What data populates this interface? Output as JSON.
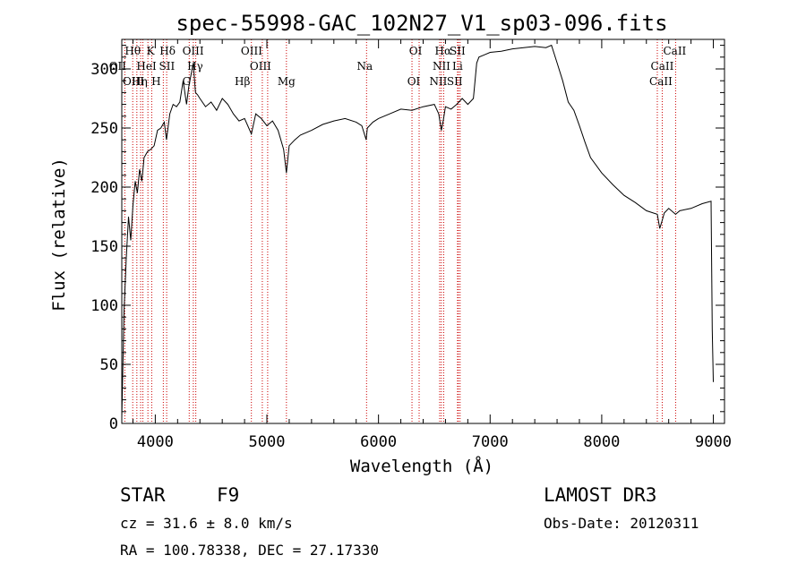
{
  "chart_data": {
    "type": "line",
    "title": "spec-55998-GAC_102N27_V1_sp03-096.fits",
    "xlabel": "Wavelength (Å)",
    "ylabel": "Flux (relative)",
    "xlim": [
      3700,
      9100
    ],
    "ylim": [
      0,
      325
    ],
    "x_ticks": [
      4000,
      5000,
      6000,
      7000,
      8000,
      9000
    ],
    "x_tick_labels": [
      "4000",
      "5000",
      "6000",
      "7000",
      "8000",
      "9000"
    ],
    "y_ticks": [
      0,
      50,
      100,
      150,
      200,
      250,
      300
    ],
    "y_tick_labels": [
      "0",
      "50",
      "100",
      "150",
      "200",
      "250",
      "300"
    ],
    "series": [
      {
        "name": "spectrum",
        "x": [
          3700,
          3720,
          3740,
          3760,
          3780,
          3800,
          3820,
          3840,
          3860,
          3880,
          3900,
          3930,
          3960,
          3990,
          4020,
          4050,
          4080,
          4100,
          4130,
          4160,
          4190,
          4220,
          4250,
          4280,
          4300,
          4320,
          4340,
          4360,
          4380,
          4400,
          4450,
          4500,
          4550,
          4600,
          4650,
          4700,
          4750,
          4800,
          4861,
          4900,
          4950,
          5000,
          5050,
          5100,
          5150,
          5175,
          5200,
          5250,
          5300,
          5400,
          5500,
          5600,
          5700,
          5800,
          5850,
          5890,
          5900,
          5950,
          6000,
          6100,
          6200,
          6300,
          6400,
          6500,
          6540,
          6563,
          6580,
          6600,
          6650,
          6700,
          6750,
          6800,
          6850,
          6880,
          6900,
          6950,
          7000,
          7100,
          7200,
          7300,
          7400,
          7500,
          7550,
          7600,
          7650,
          7700,
          7750,
          7800,
          7850,
          7900,
          8000,
          8100,
          8200,
          8300,
          8400,
          8498,
          8520,
          8542,
          8560,
          8600,
          8662,
          8700,
          8800,
          8900,
          8980,
          8990,
          9000
        ],
        "y": [
          5,
          95,
          140,
          175,
          155,
          185,
          205,
          195,
          215,
          205,
          225,
          230,
          232,
          235,
          248,
          250,
          255,
          240,
          262,
          270,
          268,
          272,
          290,
          270,
          285,
          295,
          305,
          280,
          278,
          275,
          268,
          272,
          265,
          275,
          270,
          262,
          256,
          258,
          245,
          262,
          258,
          252,
          256,
          248,
          232,
          212,
          235,
          240,
          244,
          248,
          253,
          256,
          258,
          255,
          252,
          240,
          250,
          255,
          258,
          262,
          266,
          265,
          268,
          270,
          262,
          248,
          256,
          268,
          266,
          270,
          275,
          270,
          275,
          305,
          310,
          312,
          314,
          315,
          317,
          318,
          319,
          318,
          320,
          305,
          290,
          272,
          265,
          252,
          238,
          225,
          212,
          202,
          193,
          187,
          180,
          177,
          165,
          172,
          178,
          182,
          177,
          180,
          182,
          186,
          188,
          80,
          35
        ]
      }
    ],
    "line_labels": [
      {
        "label": "Hθ",
        "wavelength": 3798
      },
      {
        "label": "OII",
        "wavelength": 3727
      },
      {
        "label": "OIII",
        "wavelength": 3869
      },
      {
        "label": "K",
        "wavelength": 3934
      },
      {
        "label": "H",
        "wavelength": 3968
      },
      {
        "label": "HeI",
        "wavelength": 3889
      },
      {
        "label": "Hη",
        "wavelength": 3835
      },
      {
        "label": "SII",
        "wavelength": 4072
      },
      {
        "label": "Hδ",
        "wavelength": 4102
      },
      {
        "label": "OIII",
        "wavelength": 4363
      },
      {
        "label": "Hγ",
        "wavelength": 4341
      },
      {
        "label": "G",
        "wavelength": 4304
      },
      {
        "label": "Hβ",
        "wavelength": 4861
      },
      {
        "label": "OIII",
        "wavelength": 4959
      },
      {
        "label": "OIII",
        "wavelength": 5007
      },
      {
        "label": "Mg",
        "wavelength": 5175
      },
      {
        "label": "Na",
        "wavelength": 5893
      },
      {
        "label": "OI",
        "wavelength": 6300
      },
      {
        "label": "OI",
        "wavelength": 6364
      },
      {
        "label": "Hα",
        "wavelength": 6563
      },
      {
        "label": "NII",
        "wavelength": 6548
      },
      {
        "label": "NII",
        "wavelength": 6584
      },
      {
        "label": "SII",
        "wavelength": 6716
      },
      {
        "label": "Li",
        "wavelength": 6708
      },
      {
        "label": "SII",
        "wavelength": 6731
      },
      {
        "label": "CaII",
        "wavelength": 8662
      },
      {
        "label": "CaII",
        "wavelength": 8542
      },
      {
        "label": "CaII",
        "wavelength": 8498
      }
    ],
    "line_marker_color": "#cc0000"
  },
  "info": {
    "object_class": "STAR",
    "subclass": "F9",
    "survey": "LAMOST DR3",
    "redshift": "cz = 31.6 ± 8.0 km/s",
    "obs_date": "Obs-Date: 20120311",
    "coords": "RA = 100.78338, DEC =  27.17330"
  }
}
